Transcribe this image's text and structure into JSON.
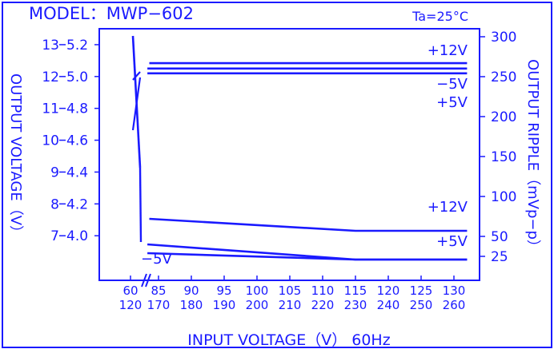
{
  "header": {
    "model": "MODEL：MWP−602",
    "ambient": "Ta=25°C"
  },
  "colors": {
    "ink": "#1a1aff",
    "background": "#ffffff"
  },
  "chart_data": {
    "type": "line",
    "title": "MODEL：MWP−602",
    "xlabel": "INPUT  VOLTAGE（V） 60Hz",
    "ylabel_left": "OUTPUT  VOLTAGE（V）",
    "ylabel_right": "OUTPUT  RIPPLE（mVp−p）",
    "x_ticks_top": [
      "60",
      "85",
      "90",
      "95",
      "100",
      "105",
      "110",
      "115",
      "120",
      "125",
      "130"
    ],
    "x_ticks_bottom": [
      "120",
      "170",
      "180",
      "190",
      "200",
      "210",
      "220",
      "230",
      "240",
      "250",
      "260"
    ],
    "xlim": [
      60,
      132
    ],
    "axis_break": "between 60 and 85",
    "y_ticks_left_12v": [
      "13",
      "12",
      "11",
      "10",
      "9",
      "8",
      "7"
    ],
    "y_ticks_left_5v": [
      "5.2",
      "5.0",
      "4.8",
      "4.6",
      "4.4",
      "4.2",
      "4.0"
    ],
    "y_ticks_right": [
      "300",
      "250",
      "200",
      "150",
      "100",
      "50",
      "25"
    ],
    "ylim_12v": [
      5.6,
      13.5
    ],
    "ylim_5v": [
      3.72,
      5.3
    ],
    "ylim_ripple": [
      -5,
      310
    ],
    "series": [
      {
        "name": "+12V",
        "group": "voltage",
        "axis": "left_12v",
        "x": [
          83.6,
          132
        ],
        "y": [
          12.42,
          12.42
        ]
      },
      {
        "name": "−5V",
        "group": "voltage",
        "axis": "left_5v",
        "x": [
          83.3,
          132
        ],
        "y": [
          5.05,
          5.05
        ]
      },
      {
        "name": "+5V",
        "group": "voltage",
        "axis": "left_5v",
        "x": [
          83.3,
          132
        ],
        "y": [
          5.02,
          5.02
        ]
      },
      {
        "name": "+12V",
        "group": "ripple",
        "axis": "right",
        "x": [
          83.6,
          115,
          132
        ],
        "y": [
          72,
          57,
          57
        ]
      },
      {
        "name": "+5V",
        "group": "ripple",
        "axis": "right",
        "x": [
          83.3,
          115,
          132
        ],
        "y": [
          40,
          21,
          21
        ]
      },
      {
        "name": "−5V",
        "group": "ripple",
        "axis": "right",
        "x": [
          83.3,
          115,
          132
        ],
        "y": [
          29,
          21,
          21
        ]
      }
    ],
    "labels": [
      "+12V",
      "−5V",
      "+5V",
      "+12V",
      "+5V",
      "−5V"
    ],
    "grid": false,
    "legend": "inline labels"
  }
}
